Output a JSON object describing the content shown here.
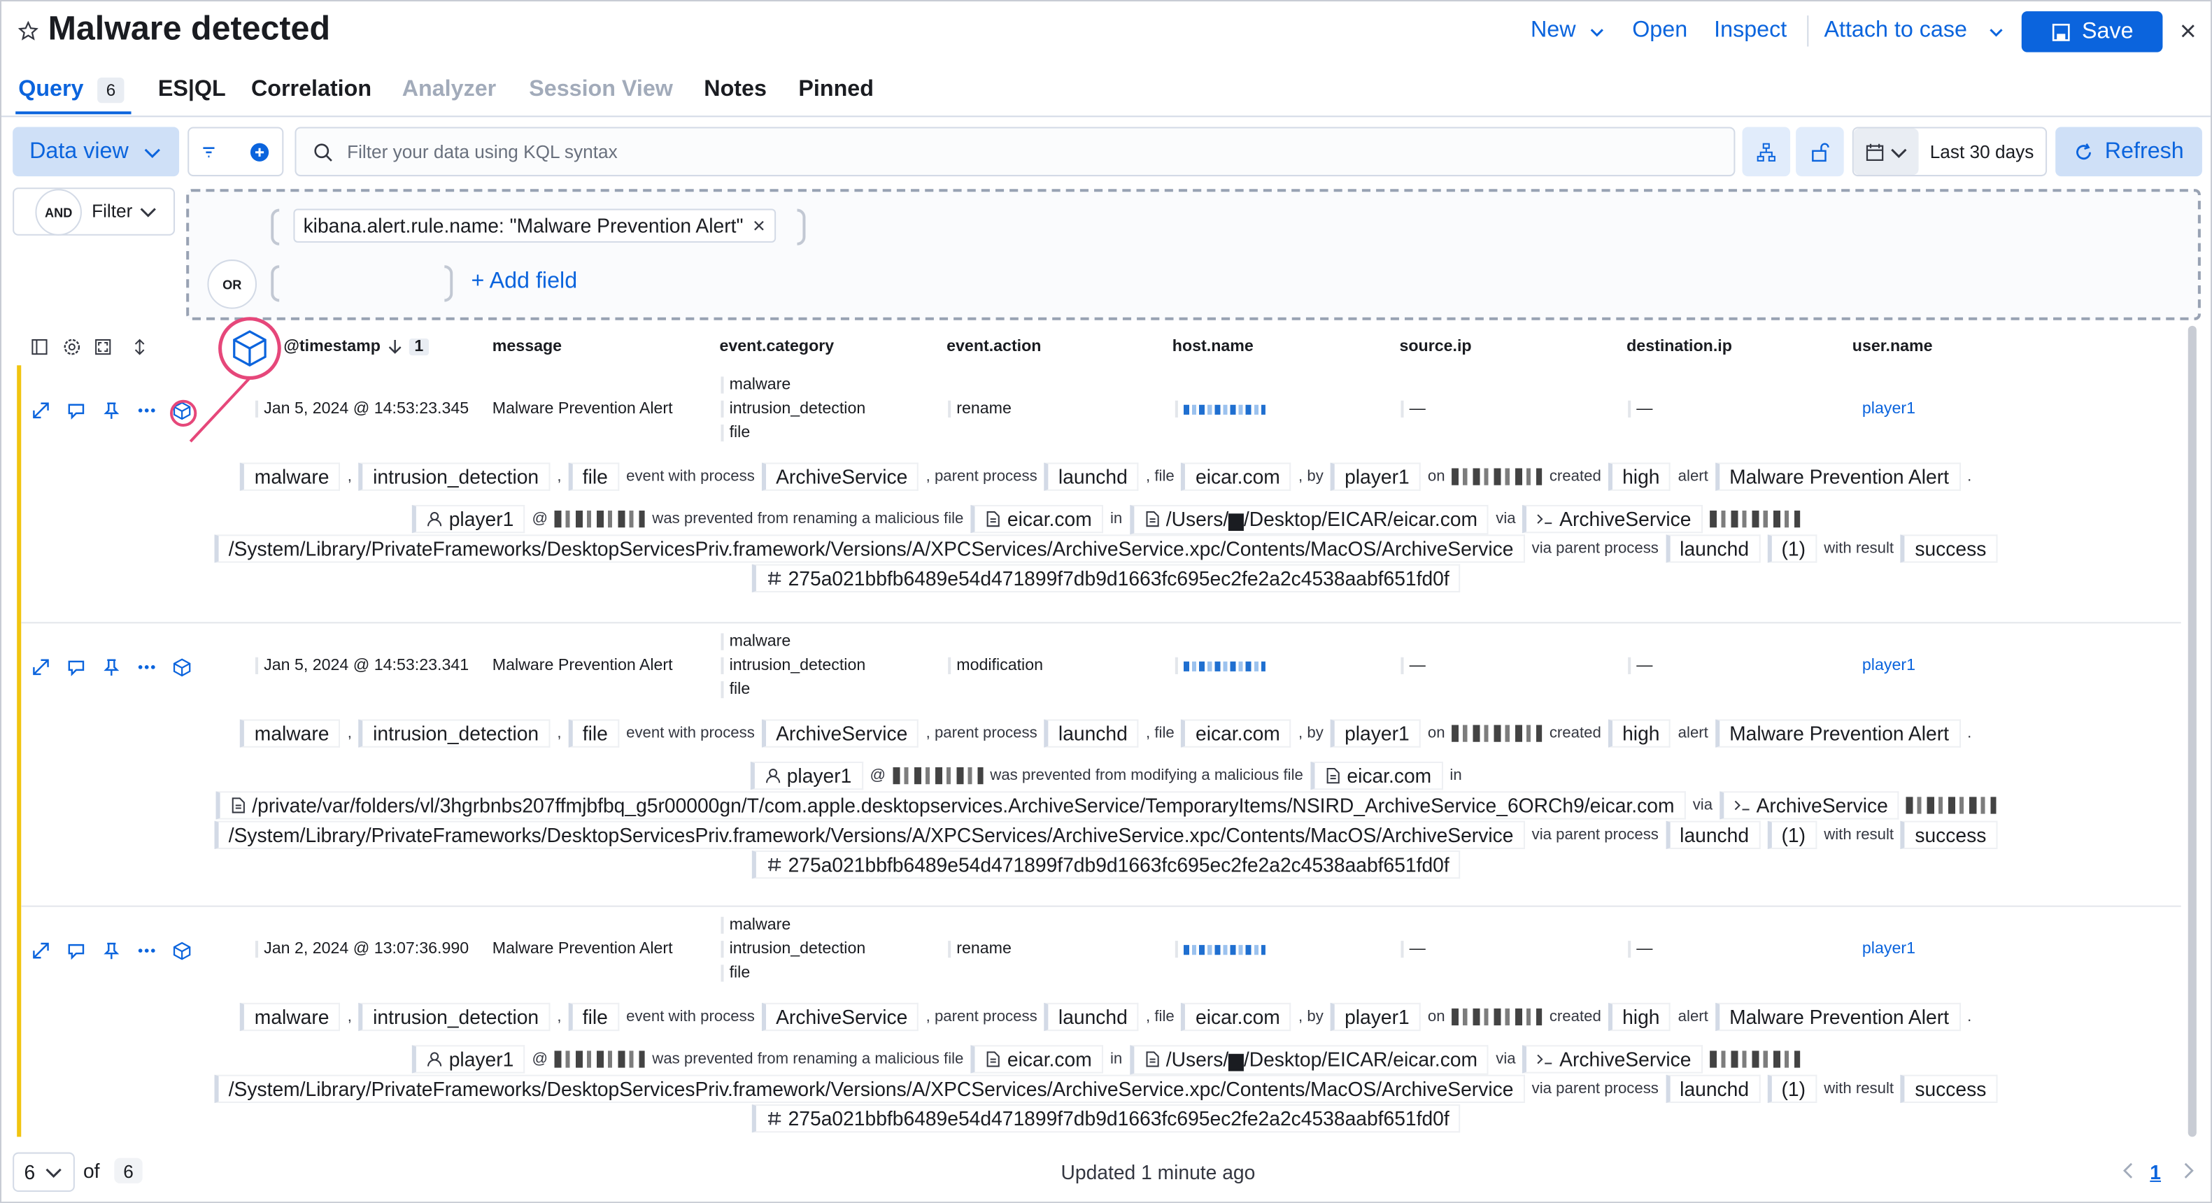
{
  "header": {
    "title": "Malware detected",
    "menu": [
      "New",
      "Open",
      "Inspect",
      "Attach to case"
    ],
    "save": "Save"
  },
  "tabs": [
    {
      "label": "Query",
      "count": 6
    },
    {
      "label": "ES|QL"
    },
    {
      "label": "Correlation"
    },
    {
      "label": "Analyzer",
      "disabled": true
    },
    {
      "label": "Session View",
      "disabled": true
    },
    {
      "label": "Notes"
    },
    {
      "label": "Pinned"
    }
  ],
  "toolbar": {
    "data_view": "Data view",
    "search_placeholder": "Filter your data using KQL syntax",
    "date": "Last 30 days",
    "refresh": "Refresh"
  },
  "filter": {
    "and": "AND",
    "filter": "Filter",
    "or": "OR",
    "pill": "kibana.alert.rule.name: \"Malware Prevention Alert\"",
    "add_field": "+ Add field"
  },
  "table": {
    "columns": [
      "@timestamp",
      "message",
      "event.category",
      "event.action",
      "host.name",
      "source.ip",
      "destination.ip",
      "user.name"
    ],
    "sort_count": 1,
    "rows": [
      {
        "timestamp": "Jan 5, 2024 @ 14:53:23.345",
        "message": "Malware Prevention Alert",
        "category": [
          "malware",
          "intrusion_detection",
          "file"
        ],
        "action": "rename",
        "source_ip": "—",
        "destination_ip": "—",
        "user": "player1",
        "summary": [
          [
            {
              "badge": "malware"
            },
            {
              "text": ","
            },
            {
              "badge": "intrusion_detection"
            },
            {
              "text": ","
            },
            {
              "badge": "file"
            },
            {
              "text": "event with process"
            },
            {
              "badge": "ArchiveService"
            },
            {
              "text": ", parent process"
            },
            {
              "badge": "launchd"
            },
            {
              "text": ", file"
            },
            {
              "badge": "eicar.com"
            },
            {
              "text": ", by"
            },
            {
              "badge": "player1"
            },
            {
              "text": "on"
            },
            null,
            {
              "text": "created"
            },
            {
              "badge": "high"
            },
            {
              "text": "alert"
            },
            {
              "badge": "Malware Prevention Alert"
            },
            {
              "text": "."
            }
          ],
          [
            {
              "user": "player1"
            },
            {
              "text": "@"
            },
            null,
            {
              "text": "was prevented from renaming a malicious file"
            },
            {
              "file": "eicar.com"
            },
            {
              "text": "in"
            },
            {
              "file": "/Users/▆/Desktop/EICAR/eicar.com"
            },
            {
              "text": "via"
            },
            {
              "process": "ArchiveService"
            },
            null
          ],
          [
            {
              "badge": "/System/Library/PrivateFrameworks/DesktopServicesPriv.framework/Versions/A/XPCServices/ArchiveService.xpc/Contents/MacOS/ArchiveService"
            },
            {
              "text": "via parent process"
            },
            {
              "badge": "launchd"
            },
            {
              "badge": "(1)"
            },
            {
              "text": "with result"
            },
            {
              "badge": "success"
            }
          ],
          [
            {
              "hash": "275a021bbfb6489e54d471899f7db9d1663fc695ec2fe2a2c4538aabf651fd0f"
            }
          ]
        ]
      },
      {
        "timestamp": "Jan 5, 2024 @ 14:53:23.341",
        "message": "Malware Prevention Alert",
        "category": [
          "malware",
          "intrusion_detection",
          "file"
        ],
        "action": "modification",
        "source_ip": "—",
        "destination_ip": "—",
        "user": "player1",
        "summary": [
          [
            {
              "badge": "malware"
            },
            {
              "text": ","
            },
            {
              "badge": "intrusion_detection"
            },
            {
              "text": ","
            },
            {
              "badge": "file"
            },
            {
              "text": "event with process"
            },
            {
              "badge": "ArchiveService"
            },
            {
              "text": ", parent process"
            },
            {
              "badge": "launchd"
            },
            {
              "text": ", file"
            },
            {
              "badge": "eicar.com"
            },
            {
              "text": ", by"
            },
            {
              "badge": "player1"
            },
            {
              "text": "on"
            },
            null,
            {
              "text": "created"
            },
            {
              "badge": "high"
            },
            {
              "text": "alert"
            },
            {
              "badge": "Malware Prevention Alert"
            },
            {
              "text": "."
            }
          ],
          [
            {
              "user": "player1"
            },
            {
              "text": "@"
            },
            null,
            {
              "text": "was prevented from modifying a malicious file"
            },
            {
              "file": "eicar.com"
            },
            {
              "text": "in"
            }
          ],
          [
            {
              "file": "/private/var/folders/vl/3hgrbnbs207ffmjbfbq_g5r00000gn/T/com.apple.desktopservices.ArchiveService/TemporaryItems/NSIRD_ArchiveService_6ORCh9/eicar.com"
            },
            {
              "text": "via"
            },
            {
              "process": "ArchiveService"
            },
            null
          ],
          [
            {
              "badge": "/System/Library/PrivateFrameworks/DesktopServicesPriv.framework/Versions/A/XPCServices/ArchiveService.xpc/Contents/MacOS/ArchiveService"
            },
            {
              "text": "via parent process"
            },
            {
              "badge": "launchd"
            },
            {
              "badge": "(1)"
            },
            {
              "text": "with result"
            },
            {
              "badge": "success"
            }
          ],
          [
            {
              "hash": "275a021bbfb6489e54d471899f7db9d1663fc695ec2fe2a2c4538aabf651fd0f"
            }
          ]
        ]
      },
      {
        "timestamp": "Jan 2, 2024 @ 13:07:36.990",
        "message": "Malware Prevention Alert",
        "category": [
          "malware",
          "intrusion_detection",
          "file"
        ],
        "action": "rename",
        "source_ip": "—",
        "destination_ip": "—",
        "user": "player1",
        "summary": [
          [
            {
              "badge": "malware"
            },
            {
              "text": ","
            },
            {
              "badge": "intrusion_detection"
            },
            {
              "text": ","
            },
            {
              "badge": "file"
            },
            {
              "text": "event with process"
            },
            {
              "badge": "ArchiveService"
            },
            {
              "text": ", parent process"
            },
            {
              "badge": "launchd"
            },
            {
              "text": ", file"
            },
            {
              "badge": "eicar.com"
            },
            {
              "text": ", by"
            },
            {
              "badge": "player1"
            },
            {
              "text": "on"
            },
            null,
            {
              "text": "created"
            },
            {
              "badge": "high"
            },
            {
              "text": "alert"
            },
            {
              "badge": "Malware Prevention Alert"
            },
            {
              "text": "."
            }
          ],
          [
            {
              "user": "player1"
            },
            {
              "text": "@"
            },
            null,
            {
              "text": "was prevented from renaming a malicious file"
            },
            {
              "file": "eicar.com"
            },
            {
              "text": "in"
            },
            {
              "file": "/Users/▆/Desktop/EICAR/eicar.com"
            },
            {
              "text": "via"
            },
            {
              "process": "ArchiveService"
            },
            null
          ],
          [
            {
              "badge": "/System/Library/PrivateFrameworks/DesktopServicesPriv.framework/Versions/A/XPCServices/ArchiveService.xpc/Contents/MacOS/ArchiveService"
            },
            {
              "text": "via parent process"
            },
            {
              "badge": "launchd"
            },
            {
              "badge": "(1)"
            },
            {
              "text": "with result"
            },
            {
              "badge": "success"
            }
          ],
          [
            {
              "hash": "275a021bbfb6489e54d471899f7db9d1663fc695ec2fe2a2c4538aabf651fd0f"
            }
          ]
        ]
      }
    ]
  },
  "footer": {
    "per_page": 6,
    "of": "of",
    "total": 6,
    "status": "Updated 1 minute ago",
    "page": 1
  }
}
